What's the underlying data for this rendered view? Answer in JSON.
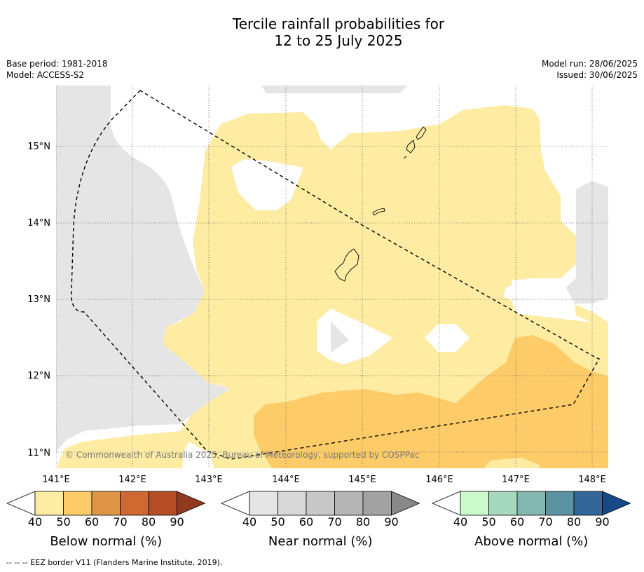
{
  "title_line1": "Tercile rainfall probabilities for",
  "title_line2": "12 to 25 July 2025",
  "base_period": "Base period: 1981-2018",
  "model": "Model: ACCESS-S2",
  "model_run": "Model run: 28/06/2025",
  "issued": "Issued: 30/06/2025",
  "copyright": "© Commonwealth of Australia 2025, Bureau of Meteorology, supported by COSPPac",
  "footnote": "--  --  -- EEZ border V11 (Flanders Marine Institute, 2019).",
  "map": {
    "lon_ticks": [
      "141°E",
      "142°E",
      "143°E",
      "144°E",
      "145°E",
      "146°E",
      "147°E",
      "148°E"
    ],
    "lat_ticks": [
      "15°N",
      "14°N",
      "13°N",
      "12°N",
      "11°N"
    ],
    "lon_range": [
      141,
      148.2
    ],
    "lat_range": [
      10.8,
      15.8
    ]
  },
  "legends": [
    {
      "title": "Below normal (%)",
      "ticks": [
        "40",
        "50",
        "60",
        "70",
        "80",
        "90"
      ],
      "colors": [
        "#ffffff",
        "#fdeca2",
        "#fdcc69",
        "#e09546",
        "#d06832",
        "#b44d26",
        "#923a1f"
      ]
    },
    {
      "title": "Near normal (%)",
      "ticks": [
        "40",
        "50",
        "60",
        "70",
        "80",
        "90"
      ],
      "colors": [
        "#ffffff",
        "#e5e5e5",
        "#d8d8d8",
        "#c8c8c8",
        "#b5b5b5",
        "#a2a2a2",
        "#888888"
      ]
    },
    {
      "title": "Above normal (%)",
      "ticks": [
        "40",
        "50",
        "60",
        "70",
        "80",
        "90"
      ],
      "colors": [
        "#ffffff",
        "#ccfacc",
        "#a6d7bf",
        "#84b7b0",
        "#5b93a2",
        "#336699",
        "#164a86"
      ]
    }
  ]
}
